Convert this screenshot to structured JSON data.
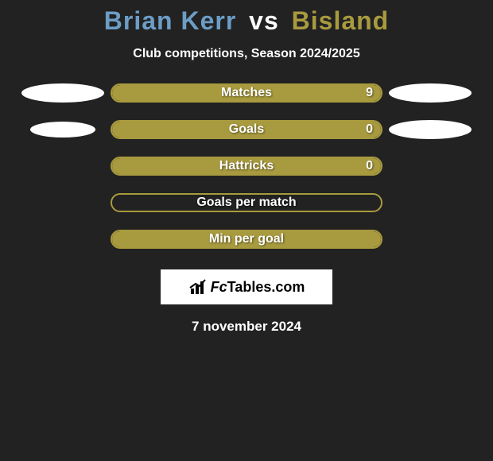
{
  "title": {
    "player1": "Brian Kerr",
    "vs": "vs",
    "player2": "Bisland",
    "player1_color": "#6c9dc6",
    "player2_color": "#a89a3e",
    "vs_color": "#ffffff",
    "fontsize": 32
  },
  "subtitle": "Club competitions, Season 2024/2025",
  "background_color": "#222222",
  "bar_border_color": "#a89a3e",
  "bar_fill_color": "#a89a3e",
  "text_color": "#ffffff",
  "ellipse_color": "#ffffff",
  "rows": [
    {
      "label": "Matches",
      "value_right": "9",
      "fill_pct": 100,
      "show_left_ellipse": true,
      "show_right_ellipse": true,
      "left_ellipse_w": 104,
      "left_ellipse_h": 24,
      "right_ellipse_w": 104,
      "right_ellipse_h": 24,
      "show_value": true
    },
    {
      "label": "Goals",
      "value_right": "0",
      "fill_pct": 100,
      "show_left_ellipse": true,
      "show_right_ellipse": true,
      "left_ellipse_w": 82,
      "left_ellipse_h": 20,
      "right_ellipse_w": 104,
      "right_ellipse_h": 24,
      "show_value": true
    },
    {
      "label": "Hattricks",
      "value_right": "0",
      "fill_pct": 100,
      "show_left_ellipse": false,
      "show_right_ellipse": false,
      "show_value": true
    },
    {
      "label": "Goals per match",
      "value_right": "",
      "fill_pct": 0,
      "show_left_ellipse": false,
      "show_right_ellipse": false,
      "show_value": false
    },
    {
      "label": "Min per goal",
      "value_right": "",
      "fill_pct": 100,
      "show_left_ellipse": false,
      "show_right_ellipse": false,
      "show_value": false
    }
  ],
  "logo": {
    "text_prefix": "Fc",
    "text_rest": "Tables.com",
    "box_bg": "#ffffff",
    "icon_color": "#000000"
  },
  "date": "7 november 2024"
}
